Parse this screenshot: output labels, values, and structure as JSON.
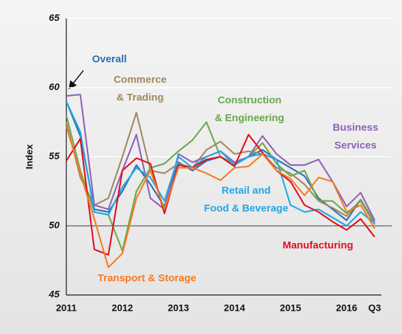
{
  "chart_data": {
    "type": "line",
    "y_label": "Index",
    "categories": [
      "2011",
      null,
      null,
      null,
      "2012",
      null,
      null,
      null,
      "2013",
      null,
      null,
      null,
      "2014",
      null,
      null,
      null,
      "2015",
      null,
      null,
      null,
      "2016",
      null,
      "Q3"
    ],
    "ylim": [
      45,
      65
    ],
    "yticks": [
      45,
      50,
      55,
      60,
      65
    ],
    "grid": true,
    "reference_line": 50,
    "series": [
      {
        "name": "Overall",
        "color": "#2e6db4",
        "values": [
          59,
          56.5,
          51.2,
          51,
          52.5,
          54.4,
          53,
          51.4,
          54.6,
          54,
          54.7,
          55,
          54.5,
          55,
          55.5,
          54.8,
          54.2,
          53.6,
          52,
          51.2,
          50.4,
          51.9,
          50.2
        ]
      },
      {
        "name": "Commerce\n& Trading",
        "color": "#a08a5e",
        "values": [
          57.5,
          53.5,
          51.5,
          52,
          55,
          58.2,
          54,
          53.8,
          54.5,
          54.2,
          55.5,
          56.1,
          55.2,
          55.4,
          55.2,
          54.2,
          53.8,
          53,
          51.8,
          51.3,
          50.7,
          51.9,
          50.3
        ]
      },
      {
        "name": "Construction\n& Engineering",
        "color": "#6aa84f",
        "values": [
          58,
          54,
          51,
          50.8,
          48.2,
          52.5,
          54.2,
          54.5,
          55.4,
          56.2,
          57.5,
          55,
          54.5,
          55,
          56,
          54.5,
          53.6,
          54,
          51.8,
          51.8,
          50.9,
          51.8,
          50.1
        ]
      },
      {
        "name": "Business\nServices",
        "color": "#8e62b8",
        "values": [
          59.4,
          59.5,
          51.5,
          51.2,
          54,
          56.6,
          52,
          51.2,
          55.2,
          54.6,
          55,
          55.4,
          54.6,
          55,
          56.5,
          55.2,
          54.4,
          54.4,
          54.8,
          53.2,
          51.4,
          52.4,
          50.4
        ]
      },
      {
        "name": "Retail and\nFood & Beverage",
        "color": "#1ea8e6",
        "values": [
          59,
          56.8,
          51,
          50.8,
          52.8,
          54.2,
          53.5,
          51.8,
          55,
          54.2,
          55,
          55.4,
          54.4,
          55,
          55.2,
          54.8,
          51.5,
          51,
          51.2,
          50.6,
          50,
          51,
          50.2
        ]
      },
      {
        "name": "Manufacturing",
        "color": "#e0101c",
        "values": [
          54.7,
          56.3,
          48.3,
          47.9,
          54,
          54.9,
          54.5,
          50.9,
          54.4,
          54.2,
          54.8,
          55,
          54.3,
          56.6,
          55.3,
          54,
          53.2,
          51.5,
          51,
          50.3,
          49.7,
          50.5,
          49.2
        ]
      },
      {
        "name": "Transport & Storage",
        "color": "#f47a22",
        "values": [
          57.2,
          53.8,
          50.5,
          47,
          48,
          52,
          54,
          51.2,
          54.2,
          54.2,
          53.8,
          53.3,
          54.2,
          54.3,
          55.2,
          54,
          53.4,
          52.2,
          53.5,
          53.2,
          51,
          51.5,
          49.8
        ]
      }
    ]
  }
}
